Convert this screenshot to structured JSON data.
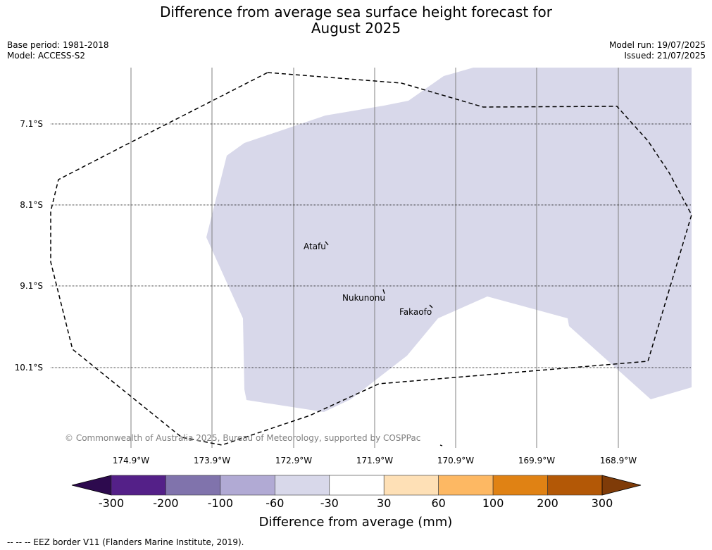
{
  "title": {
    "line1": "Difference from average sea surface height forecast for",
    "line2": "August 2025"
  },
  "meta": {
    "base_period": "Base period: 1981-2018",
    "model": "Model: ACCESS-S2",
    "model_run": "Model run: 19/07/2025",
    "issued": "Issued: 21/07/2025"
  },
  "map": {
    "latitude_labels": [
      "7.1°S",
      "8.1°S",
      "9.1°S",
      "10.1°S"
    ],
    "longitude_labels": [
      "174.9°W",
      "173.9°W",
      "172.9°W",
      "171.9°W",
      "170.9°W",
      "169.9°W",
      "168.9°W"
    ],
    "places": [
      {
        "name": "Atafu"
      },
      {
        "name": "Nukunonu"
      },
      {
        "name": "Fakaofo"
      }
    ],
    "anomaly_color": "#d8d8ea",
    "copyright": "© Commonwealth of Australia 2025, Bureau of Meteorology, supported by COSPPac"
  },
  "colorbar": {
    "title": "Difference from average (mm)",
    "ticks": [
      "-300",
      "-200",
      "-100",
      "-60",
      "-30",
      "30",
      "60",
      "100",
      "200",
      "300"
    ],
    "colors": [
      "#2d0a4e",
      "#542088",
      "#8073ac",
      "#b1aad4",
      "#d8d8ea",
      "#ffffff",
      "#fee0b6",
      "#fdb863",
      "#e08214",
      "#b35806",
      "#7f3b08"
    ]
  },
  "legend_note": "--  --  -- EEZ border V11 (Flanders Marine Institute, 2019)."
}
